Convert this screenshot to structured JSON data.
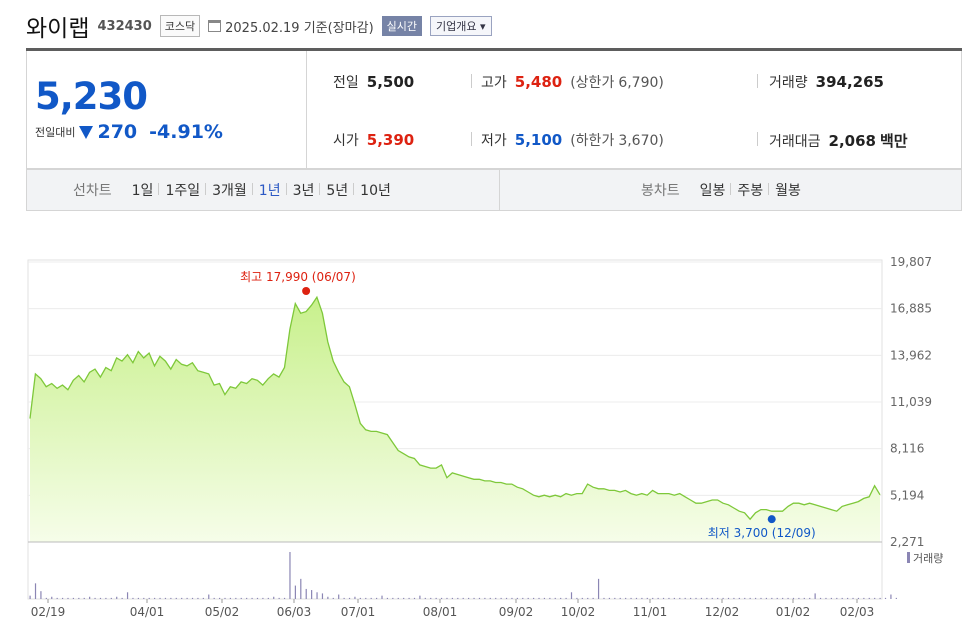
{
  "header": {
    "name": "와이랩",
    "code": "432430",
    "market": "코스닥",
    "date_text": "2025.02.19 기준(장마감)",
    "realtime_label": "실시간",
    "overview_label": "기업개요 ▾"
  },
  "quote": {
    "price": "5,230",
    "change_label": "전일대비",
    "change_value": "270",
    "change_pct": "-4.91%",
    "prev_label": "전일",
    "prev": "5,500",
    "open_label": "시가",
    "open": "5,390",
    "high_label": "고가",
    "high": "5,480",
    "upper_label": "(상한가",
    "upper": "6,790)",
    "low_label": "저가",
    "low": "5,100",
    "lower_label": "(하한가",
    "lower": "3,670)",
    "volume_label": "거래량",
    "volume": "394,265",
    "amount_label": "거래대금",
    "amount": "2,068",
    "amount_unit": "백만"
  },
  "period_bar": {
    "label": "선차트",
    "items": [
      "1일",
      "1주일",
      "3개월",
      "1년",
      "3년",
      "5년",
      "10년"
    ],
    "active": "1년",
    "candle_label": "봉차트",
    "candle_items": [
      "일봉",
      "주봉",
      "월봉"
    ]
  },
  "colors": {
    "up": "#dd2211",
    "down": "#1158c7",
    "line": "#7ec83a",
    "area_top": "#c8f08c",
    "area_bottom": "#f6fde9"
  },
  "chart_data": {
    "type": "area",
    "y_ticks": [
      "19,807",
      "16,885",
      "13,962",
      "11,039",
      "8,116",
      "5,194",
      "2,271"
    ],
    "y_tick_values": [
      19807,
      16885,
      13962,
      11039,
      8116,
      5194,
      2271
    ],
    "ylim": [
      2271,
      19807
    ],
    "x_ticks": [
      "02/19",
      "04/01",
      "05/02",
      "06/03",
      "07/01",
      "08/01",
      "09/02",
      "10/02",
      "11/01",
      "12/02",
      "01/02",
      "02/03"
    ],
    "series": [
      {
        "values": [
          10000,
          12800,
          12500,
          12000,
          12200,
          11900,
          12100,
          11800,
          12400,
          12700,
          12300,
          12900,
          13100,
          12600,
          13200,
          13000,
          13800,
          13600,
          14000,
          13500,
          14200,
          13800,
          14100,
          13300,
          13900,
          13600,
          13100,
          13700,
          13400,
          13300,
          13500,
          13000,
          12900,
          12800,
          12100,
          12200,
          11500,
          12000,
          11900,
          12300,
          12200,
          12500,
          12400,
          12100,
          12500,
          12800,
          12600,
          13200,
          15600,
          17200,
          16600,
          16700,
          17100,
          17600,
          16600,
          14800,
          13600,
          12900,
          12300,
          12000,
          10900,
          9700,
          9300,
          9200,
          9200,
          9100,
          9000,
          8500,
          8000,
          7800,
          7600,
          7500,
          7100,
          7000,
          6900,
          6900,
          7100,
          6300,
          6600,
          6500,
          6400,
          6300,
          6200,
          6200,
          6100,
          6100,
          6000,
          6000,
          5900,
          5900,
          5700,
          5600,
          5400,
          5200,
          5100,
          5200,
          5100,
          5200,
          5100,
          5300,
          5200,
          5300,
          5300,
          5900,
          5700,
          5600,
          5600,
          5500,
          5500,
          5400,
          5500,
          5300,
          5200,
          5300,
          5200,
          5500,
          5300,
          5300,
          5300,
          5200,
          5300,
          5100,
          4900,
          4700,
          4700,
          4800,
          4900,
          4900,
          4700,
          4600,
          4400,
          4200,
          4100,
          3700,
          4100,
          4300,
          4300,
          4200,
          4200,
          4200,
          4500,
          4700,
          4700,
          4600,
          4700,
          4600,
          4500,
          4400,
          4300,
          4200,
          4500,
          4600,
          4700,
          4800,
          5000,
          5100,
          5800,
          5230
        ]
      }
    ],
    "max_annotation": {
      "label": "최고",
      "value": "17,990",
      "date": "(06/07)",
      "index": 51
    },
    "min_annotation": {
      "label": "최저",
      "value": "3,700",
      "date": "(12/09)",
      "index": 137
    },
    "volume_label": "거래량",
    "volume": [
      3,
      2,
      1,
      1,
      2,
      1,
      1,
      1,
      1,
      1,
      1,
      2,
      1,
      1,
      1,
      1,
      2,
      1,
      5,
      1,
      1,
      1,
      1,
      1,
      1,
      1,
      1,
      1,
      1,
      1,
      1,
      1,
      1,
      3,
      1,
      1,
      1,
      1,
      1,
      1,
      1,
      1,
      1,
      1,
      1,
      2,
      1,
      1,
      6,
      5,
      4,
      3,
      2,
      3,
      2,
      2,
      1,
      1,
      1,
      1,
      2,
      1,
      1,
      1,
      1,
      1,
      1,
      1,
      1,
      1,
      1,
      1,
      1,
      1,
      1,
      1,
      1,
      1,
      1,
      1,
      1,
      1,
      1,
      1,
      1,
      1,
      1,
      1,
      1,
      1,
      1,
      1,
      1,
      1,
      1,
      1,
      1,
      1,
      1,
      1,
      1,
      1,
      1,
      1,
      1,
      1,
      1,
      1,
      1,
      1,
      1,
      1,
      1,
      1,
      1,
      1,
      1,
      1,
      1,
      1,
      1,
      1,
      1,
      1,
      1,
      1,
      1,
      1,
      1,
      1,
      1,
      1,
      1,
      1,
      1,
      1,
      1,
      1,
      1,
      1,
      1,
      1,
      1,
      1,
      1,
      1,
      1,
      1,
      1,
      1,
      1,
      1,
      1,
      1,
      1,
      1,
      1,
      1,
      1,
      1,
      1
    ],
    "volume_spikes": [
      [
        1,
        14
      ],
      [
        2,
        7
      ],
      [
        18,
        6
      ],
      [
        33,
        4
      ],
      [
        48,
        42
      ],
      [
        49,
        12
      ],
      [
        50,
        18
      ],
      [
        51,
        9
      ],
      [
        52,
        8
      ],
      [
        53,
        6
      ],
      [
        54,
        5
      ],
      [
        57,
        4
      ],
      [
        65,
        3
      ],
      [
        72,
        3
      ],
      [
        100,
        6
      ],
      [
        105,
        18
      ],
      [
        145,
        5
      ],
      [
        159,
        4
      ]
    ],
    "grid": true
  }
}
